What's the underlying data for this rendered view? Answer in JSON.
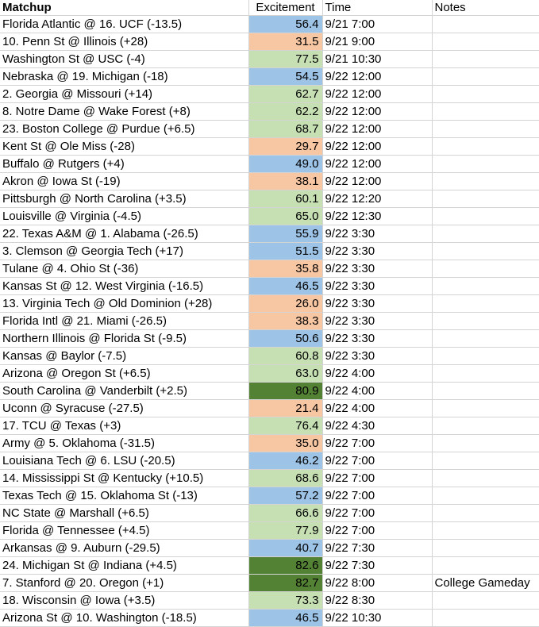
{
  "headers": {
    "matchup": "Matchup",
    "excitement": "Excitement",
    "time": "Time",
    "notes": "Notes"
  },
  "band_colors": {
    "orange": "#f7c6a3",
    "blue": "#9dc3e6",
    "lightgreen": "#c6e0b4",
    "darkgreen": "#548235"
  },
  "rows": [
    {
      "matchup": "Florida Atlantic @ 16. UCF (-13.5)",
      "excitement": "56.4",
      "band": "blue",
      "time": "9/21 7:00",
      "notes": ""
    },
    {
      "matchup": "10. Penn St @ Illinois (+28)",
      "excitement": "31.5",
      "band": "orange",
      "time": "9/21 9:00",
      "notes": ""
    },
    {
      "matchup": "Washington St @ USC (-4)",
      "excitement": "77.5",
      "band": "lightgreen",
      "time": "9/21 10:30",
      "notes": ""
    },
    {
      "matchup": "Nebraska @ 19. Michigan (-18)",
      "excitement": "54.5",
      "band": "blue",
      "time": "9/22 12:00",
      "notes": ""
    },
    {
      "matchup": "2. Georgia @ Missouri (+14)",
      "excitement": "62.7",
      "band": "lightgreen",
      "time": "9/22 12:00",
      "notes": ""
    },
    {
      "matchup": "8. Notre Dame @ Wake Forest (+8)",
      "excitement": "62.2",
      "band": "lightgreen",
      "time": "9/22 12:00",
      "notes": ""
    },
    {
      "matchup": "23. Boston College @ Purdue (+6.5)",
      "excitement": "68.7",
      "band": "lightgreen",
      "time": "9/22 12:00",
      "notes": ""
    },
    {
      "matchup": "Kent St @ Ole Miss (-28)",
      "excitement": "29.7",
      "band": "orange",
      "time": "9/22 12:00",
      "notes": ""
    },
    {
      "matchup": "Buffalo @ Rutgers (+4)",
      "excitement": "49.0",
      "band": "blue",
      "time": "9/22 12:00",
      "notes": ""
    },
    {
      "matchup": "Akron @ Iowa St (-19)",
      "excitement": "38.1",
      "band": "orange",
      "time": "9/22 12:00",
      "notes": ""
    },
    {
      "matchup": "Pittsburgh @ North Carolina (+3.5)",
      "excitement": "60.1",
      "band": "lightgreen",
      "time": "9/22 12:20",
      "notes": ""
    },
    {
      "matchup": "Louisville @ Virginia (-4.5)",
      "excitement": "65.0",
      "band": "lightgreen",
      "time": "9/22 12:30",
      "notes": ""
    },
    {
      "matchup": "22. Texas A&M @ 1. Alabama (-26.5)",
      "excitement": "55.9",
      "band": "blue",
      "time": "9/22 3:30",
      "notes": ""
    },
    {
      "matchup": "3. Clemson @ Georgia Tech (+17)",
      "excitement": "51.5",
      "band": "blue",
      "time": "9/22 3:30",
      "notes": ""
    },
    {
      "matchup": "Tulane @ 4. Ohio St (-36)",
      "excitement": "35.8",
      "band": "orange",
      "time": "9/22 3:30",
      "notes": ""
    },
    {
      "matchup": "Kansas St @ 12. West Virginia (-16.5)",
      "excitement": "46.5",
      "band": "blue",
      "time": "9/22 3:30",
      "notes": ""
    },
    {
      "matchup": "13. Virginia Tech @ Old Dominion (+28)",
      "excitement": "26.0",
      "band": "orange",
      "time": "9/22 3:30",
      "notes": ""
    },
    {
      "matchup": "Florida Intl @ 21. Miami (-26.5)",
      "excitement": "38.3",
      "band": "orange",
      "time": "9/22 3:30",
      "notes": ""
    },
    {
      "matchup": "Northern Illinois @ Florida St (-9.5)",
      "excitement": "50.6",
      "band": "blue",
      "time": "9/22 3:30",
      "notes": ""
    },
    {
      "matchup": "Kansas @ Baylor (-7.5)",
      "excitement": "60.8",
      "band": "lightgreen",
      "time": "9/22 3:30",
      "notes": ""
    },
    {
      "matchup": "Arizona @ Oregon St (+6.5)",
      "excitement": "63.0",
      "band": "lightgreen",
      "time": "9/22 4:00",
      "notes": ""
    },
    {
      "matchup": "South Carolina @ Vanderbilt (+2.5)",
      "excitement": "80.9",
      "band": "darkgreen",
      "time": "9/22 4:00",
      "notes": ""
    },
    {
      "matchup": "Uconn @ Syracuse (-27.5)",
      "excitement": "21.4",
      "band": "orange",
      "time": "9/22 4:00",
      "notes": ""
    },
    {
      "matchup": "17. TCU @ Texas (+3)",
      "excitement": "76.4",
      "band": "lightgreen",
      "time": "9/22 4:30",
      "notes": ""
    },
    {
      "matchup": "Army @ 5. Oklahoma (-31.5)",
      "excitement": "35.0",
      "band": "orange",
      "time": "9/22 7:00",
      "notes": ""
    },
    {
      "matchup": "Louisiana Tech @ 6. LSU (-20.5)",
      "excitement": "46.2",
      "band": "blue",
      "time": "9/22 7:00",
      "notes": ""
    },
    {
      "matchup": "14. Mississippi St @ Kentucky (+10.5)",
      "excitement": "68.6",
      "band": "lightgreen",
      "time": "9/22 7:00",
      "notes": ""
    },
    {
      "matchup": "Texas Tech @ 15. Oklahoma St (-13)",
      "excitement": "57.2",
      "band": "blue",
      "time": "9/22 7:00",
      "notes": ""
    },
    {
      "matchup": "NC State @ Marshall (+6.5)",
      "excitement": "66.6",
      "band": "lightgreen",
      "time": "9/22 7:00",
      "notes": ""
    },
    {
      "matchup": "Florida @ Tennessee (+4.5)",
      "excitement": "77.9",
      "band": "lightgreen",
      "time": "9/22 7:00",
      "notes": ""
    },
    {
      "matchup": "Arkansas @ 9. Auburn (-29.5)",
      "excitement": "40.7",
      "band": "blue",
      "time": "9/22 7:30",
      "notes": ""
    },
    {
      "matchup": "24. Michigan St @ Indiana (+4.5)",
      "excitement": "82.6",
      "band": "darkgreen",
      "time": "9/22 7:30",
      "notes": ""
    },
    {
      "matchup": "7. Stanford @ 20. Oregon (+1)",
      "excitement": "82.7",
      "band": "darkgreen",
      "time": "9/22 8:00",
      "notes": "College Gameday"
    },
    {
      "matchup": "18. Wisconsin @ Iowa (+3.5)",
      "excitement": "73.3",
      "band": "lightgreen",
      "time": "9/22 8:30",
      "notes": ""
    },
    {
      "matchup": "Arizona St @ 10. Washington (-18.5)",
      "excitement": "46.5",
      "band": "blue",
      "time": "9/22 10:30",
      "notes": ""
    }
  ]
}
